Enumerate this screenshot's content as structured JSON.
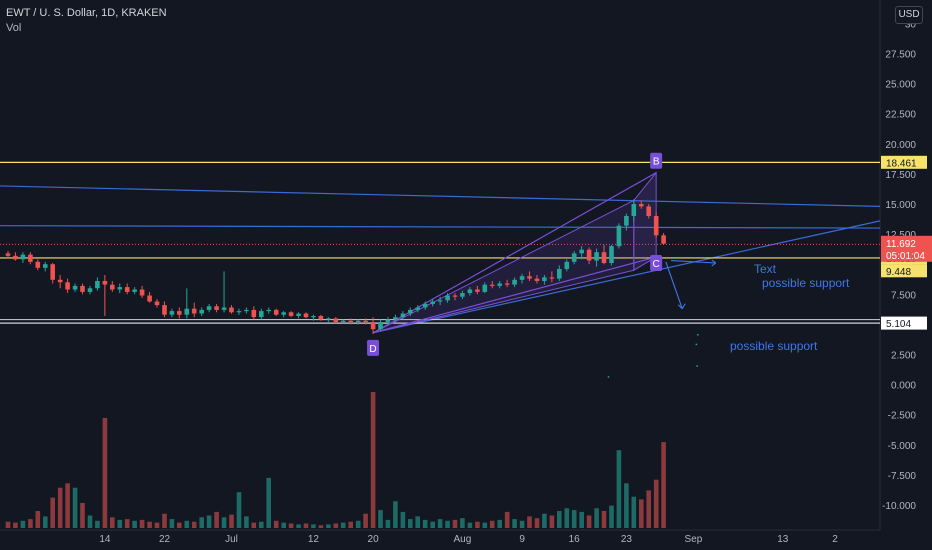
{
  "header": {
    "title": "EWT / U. S. Dollar, 1D, KRAKEN",
    "volume_label": "Vol",
    "currency": "USD"
  },
  "colors": {
    "background": "#131722",
    "up": "#26a69a",
    "down": "#ef5350",
    "vol_up": "#1d6b66",
    "vol_down": "#8c3a3c",
    "yellow_line": "#f7e36b",
    "blue_line": "#3a6bd6",
    "pattern": "#7a4fd8",
    "annotation": "#3f77e8",
    "grid": "#1e222d",
    "axis_text": "#b2b5be",
    "current_price_bg": "#ef5350"
  },
  "chart_data": {
    "type": "candlestick",
    "price_axis_ticks": [
      "30",
      "27.500",
      "25.000",
      "22.500",
      "20.000",
      "17.500",
      "15.000",
      "12.500",
      "10.000",
      "7.500",
      "5.000",
      "2.500",
      "0.000",
      "-2.500",
      "-5.000",
      "-7.500",
      "-10.000"
    ],
    "price_axis_tick_values": [
      30,
      27.5,
      25,
      22.5,
      20,
      17.5,
      15,
      12.5,
      10,
      7.5,
      5,
      2.5,
      0,
      -2.5,
      -5,
      -7.5,
      -10
    ],
    "x_axis_labels": [
      "14",
      "22",
      "Jul",
      "12",
      "20",
      "Aug",
      "9",
      "16",
      "23",
      "Sep",
      "13",
      "2"
    ],
    "x_axis_label_days": [
      13,
      21,
      30,
      41,
      49,
      61,
      69,
      76,
      83,
      92,
      104,
      111
    ],
    "ylim": [
      -11,
      30.7
    ],
    "horizontal_levels": [
      {
        "value": 18.461,
        "label": "18.461"
      },
      {
        "value": 10.52,
        "label": "10.520"
      },
      {
        "value": 9.448,
        "label": "9.448"
      },
      {
        "value": 5.104,
        "label": "5.104"
      }
    ],
    "current_price": {
      "value": 11.692,
      "label": "11.692",
      "countdown": "05:01:04"
    },
    "pattern_points": [
      {
        "label": "D",
        "day": 49,
        "value": 4.3
      },
      {
        "label": "B",
        "day": 87,
        "value": 17.6
      },
      {
        "label": "C",
        "day": 87,
        "value": 10.6
      }
    ],
    "annotations": [
      {
        "text": "Text",
        "day": 95,
        "value": 10.7
      },
      {
        "text": "possible support",
        "day": 101,
        "value": 9.6
      },
      {
        "text": "possible support",
        "day": 98,
        "value": 4.1
      }
    ],
    "candles": [
      [
        0,
        10.9,
        11.1,
        10.5,
        10.7
      ],
      [
        1,
        10.7,
        11.0,
        10.3,
        10.4
      ],
      [
        2,
        10.4,
        11.0,
        10.1,
        10.8
      ],
      [
        3,
        10.8,
        11.0,
        10.0,
        10.2
      ],
      [
        4,
        10.2,
        10.4,
        9.5,
        9.7
      ],
      [
        5,
        9.7,
        10.2,
        9.4,
        10.0
      ],
      [
        6,
        10.0,
        10.1,
        8.4,
        8.7
      ],
      [
        7,
        8.7,
        9.1,
        8.0,
        8.5
      ],
      [
        8,
        8.5,
        8.8,
        7.6,
        7.9
      ],
      [
        9,
        7.9,
        8.4,
        7.7,
        8.2
      ],
      [
        10,
        8.2,
        8.4,
        7.5,
        7.7
      ],
      [
        11,
        7.7,
        8.2,
        7.5,
        8.0
      ],
      [
        12,
        8.0,
        8.9,
        7.8,
        8.6
      ],
      [
        13,
        8.6,
        9.1,
        5.7,
        8.3
      ],
      [
        14,
        8.3,
        8.6,
        7.7,
        7.9
      ],
      [
        15,
        7.9,
        8.4,
        7.6,
        8.1
      ],
      [
        16,
        8.1,
        8.4,
        7.5,
        7.7
      ],
      [
        17,
        7.7,
        8.1,
        7.5,
        7.9
      ],
      [
        18,
        7.9,
        8.2,
        7.2,
        7.4
      ],
      [
        19,
        7.4,
        7.7,
        6.8,
        6.9
      ],
      [
        20,
        6.9,
        7.1,
        6.4,
        6.6
      ],
      [
        21,
        6.6,
        6.9,
        5.6,
        5.8
      ],
      [
        22,
        5.8,
        6.3,
        5.6,
        6.1
      ],
      [
        23,
        6.1,
        6.4,
        5.5,
        5.8
      ],
      [
        24,
        5.8,
        8.0,
        5.5,
        6.3
      ],
      [
        25,
        6.3,
        6.8,
        5.6,
        5.9
      ],
      [
        26,
        5.9,
        6.4,
        5.7,
        6.2
      ],
      [
        27,
        6.2,
        6.7,
        6.0,
        6.5
      ],
      [
        28,
        6.5,
        6.7,
        6.0,
        6.2
      ],
      [
        29,
        6.2,
        9.4,
        6.0,
        6.4
      ],
      [
        30,
        6.4,
        6.6,
        5.9,
        6.0
      ],
      [
        31,
        6.0,
        6.3,
        5.8,
        6.1
      ],
      [
        32,
        6.1,
        6.4,
        5.9,
        6.2
      ],
      [
        33,
        6.2,
        6.5,
        5.4,
        5.6
      ],
      [
        34,
        5.6,
        6.3,
        5.4,
        6.1
      ],
      [
        35,
        6.1,
        6.4,
        5.9,
        6.2
      ],
      [
        36,
        6.2,
        6.3,
        5.7,
        5.8
      ],
      [
        37,
        5.8,
        6.1,
        5.6,
        6.0
      ],
      [
        38,
        6.0,
        6.1,
        5.6,
        5.7
      ],
      [
        39,
        5.7,
        6.0,
        5.5,
        5.9
      ],
      [
        40,
        5.9,
        6.0,
        5.5,
        5.6
      ],
      [
        41,
        5.6,
        5.8,
        5.3,
        5.7
      ],
      [
        42,
        5.7,
        5.8,
        5.3,
        5.4
      ],
      [
        43,
        5.4,
        5.6,
        5.2,
        5.5
      ],
      [
        44,
        5.5,
        5.6,
        5.1,
        5.2
      ],
      [
        45,
        5.2,
        5.4,
        5.1,
        5.3
      ],
      [
        46,
        5.3,
        5.5,
        5.0,
        5.2
      ],
      [
        47,
        5.2,
        5.4,
        5.0,
        5.3
      ],
      [
        48,
        5.3,
        5.5,
        5.0,
        5.2
      ],
      [
        49,
        5.2,
        5.6,
        4.2,
        4.6
      ],
      [
        50,
        4.6,
        5.4,
        4.5,
        5.2
      ],
      [
        51,
        5.2,
        5.6,
        5.0,
        5.4
      ],
      [
        52,
        5.4,
        5.8,
        5.2,
        5.6
      ],
      [
        53,
        5.6,
        6.1,
        5.4,
        5.9
      ],
      [
        54,
        5.9,
        6.4,
        5.7,
        6.2
      ],
      [
        55,
        6.2,
        6.6,
        6.0,
        6.4
      ],
      [
        56,
        6.4,
        6.9,
        6.2,
        6.7
      ],
      [
        57,
        6.7,
        7.1,
        6.5,
        6.9
      ],
      [
        58,
        6.9,
        7.3,
        6.6,
        7.0
      ],
      [
        59,
        7.0,
        7.6,
        6.8,
        7.4
      ],
      [
        60,
        7.4,
        7.6,
        7.0,
        7.3
      ],
      [
        61,
        7.3,
        7.8,
        7.1,
        7.6
      ],
      [
        62,
        7.6,
        8.1,
        7.4,
        7.9
      ],
      [
        63,
        7.9,
        8.2,
        7.5,
        7.7
      ],
      [
        64,
        7.7,
        8.5,
        7.6,
        8.3
      ],
      [
        65,
        8.3,
        8.6,
        8.0,
        8.2
      ],
      [
        66,
        8.2,
        8.6,
        8.0,
        8.4
      ],
      [
        67,
        8.4,
        8.7,
        8.1,
        8.3
      ],
      [
        68,
        8.3,
        8.9,
        8.1,
        8.7
      ],
      [
        69,
        8.7,
        9.2,
        8.4,
        9.0
      ],
      [
        70,
        9.0,
        9.4,
        8.6,
        8.8
      ],
      [
        71,
        8.8,
        9.1,
        8.4,
        8.6
      ],
      [
        72,
        8.6,
        9.1,
        8.3,
        8.9
      ],
      [
        73,
        8.9,
        9.4,
        8.5,
        8.8
      ],
      [
        74,
        8.8,
        9.9,
        8.6,
        9.6
      ],
      [
        75,
        9.6,
        10.4,
        9.4,
        10.2
      ],
      [
        76,
        10.2,
        11.1,
        10.0,
        10.9
      ],
      [
        77,
        10.9,
        11.5,
        10.4,
        11.2
      ],
      [
        78,
        11.2,
        11.4,
        10.0,
        10.3
      ],
      [
        79,
        10.3,
        11.3,
        9.8,
        11.0
      ],
      [
        80,
        11.0,
        11.6,
        10.0,
        10.1
      ],
      [
        81,
        10.1,
        11.6,
        9.9,
        11.5
      ],
      [
        82,
        11.5,
        13.4,
        11.3,
        13.2
      ],
      [
        83,
        13.2,
        14.2,
        12.8,
        14.0
      ],
      [
        84,
        14.0,
        15.4,
        13.6,
        15.0
      ],
      [
        85,
        15.0,
        15.3,
        14.6,
        14.8
      ],
      [
        86,
        14.8,
        15.0,
        13.8,
        14.0
      ],
      [
        87,
        14.0,
        14.3,
        12.2,
        12.4
      ],
      [
        88,
        12.4,
        12.6,
        11.6,
        11.7
      ]
    ],
    "volume": [
      [
        0,
        0.7
      ],
      [
        1,
        0.6
      ],
      [
        2,
        0.8
      ],
      [
        3,
        1.0
      ],
      [
        4,
        1.9
      ],
      [
        5,
        1.3
      ],
      [
        6,
        3.4
      ],
      [
        7,
        4.5
      ],
      [
        8,
        5.0
      ],
      [
        9,
        4.5
      ],
      [
        10,
        2.8
      ],
      [
        11,
        1.4
      ],
      [
        12,
        0.8
      ],
      [
        13,
        12.3
      ],
      [
        14,
        1.2
      ],
      [
        15,
        0.9
      ],
      [
        16,
        1.0
      ],
      [
        17,
        0.8
      ],
      [
        18,
        0.9
      ],
      [
        19,
        0.7
      ],
      [
        20,
        0.6
      ],
      [
        21,
        1.6
      ],
      [
        22,
        1.0
      ],
      [
        23,
        0.6
      ],
      [
        24,
        0.8
      ],
      [
        25,
        0.7
      ],
      [
        26,
        1.2
      ],
      [
        27,
        1.4
      ],
      [
        28,
        1.8
      ],
      [
        29,
        1.2
      ],
      [
        30,
        1.5
      ],
      [
        31,
        4.0
      ],
      [
        32,
        1.3
      ],
      [
        33,
        0.6
      ],
      [
        34,
        0.7
      ],
      [
        35,
        5.6
      ],
      [
        36,
        0.8
      ],
      [
        37,
        0.6
      ],
      [
        38,
        0.5
      ],
      [
        39,
        0.4
      ],
      [
        40,
        0.5
      ],
      [
        41,
        0.4
      ],
      [
        42,
        0.3
      ],
      [
        43,
        0.4
      ],
      [
        44,
        0.5
      ],
      [
        45,
        0.6
      ],
      [
        46,
        0.7
      ],
      [
        47,
        0.8
      ],
      [
        48,
        1.6
      ],
      [
        49,
        15.2
      ],
      [
        50,
        2.0
      ],
      [
        51,
        0.9
      ],
      [
        52,
        3.0
      ],
      [
        53,
        1.8
      ],
      [
        54,
        1.0
      ],
      [
        55,
        1.3
      ],
      [
        56,
        0.9
      ],
      [
        57,
        0.7
      ],
      [
        58,
        1.0
      ],
      [
        59,
        0.8
      ],
      [
        60,
        0.9
      ],
      [
        61,
        1.1
      ],
      [
        62,
        0.6
      ],
      [
        63,
        0.7
      ],
      [
        64,
        0.6
      ],
      [
        65,
        0.8
      ],
      [
        66,
        0.9
      ],
      [
        67,
        1.8
      ],
      [
        68,
        1.0
      ],
      [
        69,
        0.8
      ],
      [
        70,
        1.3
      ],
      [
        71,
        1.1
      ],
      [
        72,
        1.6
      ],
      [
        73,
        1.4
      ],
      [
        74,
        1.9
      ],
      [
        75,
        2.2
      ],
      [
        76,
        2.0
      ],
      [
        77,
        1.8
      ],
      [
        78,
        1.4
      ],
      [
        79,
        2.2
      ],
      [
        80,
        1.9
      ],
      [
        81,
        2.5
      ],
      [
        82,
        8.7
      ],
      [
        83,
        5.0
      ],
      [
        84,
        3.5
      ],
      [
        85,
        3.2
      ],
      [
        86,
        4.2
      ],
      [
        87,
        5.4
      ],
      [
        88,
        9.6
      ]
    ]
  }
}
